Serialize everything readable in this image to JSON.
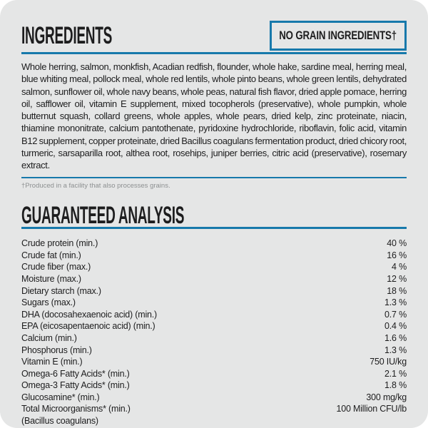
{
  "theme": {
    "accent_blue": "#1779ab",
    "card_background": "#e5e6e6",
    "text_color": "#1d1d1e",
    "footnote_color": "#8d9091"
  },
  "ingredients_section": {
    "title": "INGREDIENTS",
    "badge_label": "NO GRAIN INGREDIENTS†",
    "body": "Whole herring, salmon, monkfish, Acadian redfish, flounder, whole hake, sardine meal, herring meal, blue whiting meal, pollock meal, whole red lentils, whole pinto beans, whole green lentils, dehydrated salmon, sunflower oil, whole navy beans, whole peas, natural fish flavor, dried apple pomace, herring oil, safflower oil, vitamin E supplement, mixed tocopherols (preservative), whole pumpkin, whole butternut squash, collard greens, whole apples, whole pears, dried kelp, zinc proteinate, niacin, thiamine mononitrate, calcium pantothenate, pyridoxine hydrochloride, riboflavin, folic acid, vitamin B12 supplement, copper proteinate, dried Bacillus coagulans fermentation product, dried chicory root, turmeric, sarsaparilla root, althea root, rosehips, juniper berries, citric acid (preservative), rosemary extract.",
    "footnote": "†Produced in a facility that also processes grains."
  },
  "guaranteed_analysis": {
    "title": "GUARANTEED ANALYSIS",
    "rows": [
      {
        "label": "Crude protein (min.)",
        "value": "40 %"
      },
      {
        "label": "Crude fat (min.)",
        "value": "16 %"
      },
      {
        "label": "Crude fiber (max.)",
        "value": "4 %"
      },
      {
        "label": "Moisture (max.)",
        "value": "12 %"
      },
      {
        "label": "Dietary starch (max.)",
        "value": "18 %"
      },
      {
        "label": "Sugars (max.)",
        "value": "1.3 %"
      },
      {
        "label": "DHA (docosahexaenoic acid) (min.)",
        "value": "0.7 %"
      },
      {
        "label": "EPA (eicosapentaenoic acid) (min.)",
        "value": "0.4 %"
      },
      {
        "label": "Calcium (min.)",
        "value": "1.6 %"
      },
      {
        "label": "Phosphorus (min.)",
        "value": "1.3 %"
      },
      {
        "label": "Vitamin E (min.)",
        "value": "750 IU/kg"
      },
      {
        "label": "Omega-6 Fatty Acids* (min.)",
        "value": "2.1 %"
      },
      {
        "label": "Omega-3 Fatty Acids* (min.)",
        "value": "1.8 %"
      },
      {
        "label": "Glucosamine* (min.)",
        "value": "300 mg/kg"
      },
      {
        "label": "Total Microorganisms* (min.)",
        "value": "100 Million CFU/lb"
      },
      {
        "label": "(Bacillus coagulans)",
        "value": ""
      }
    ]
  }
}
